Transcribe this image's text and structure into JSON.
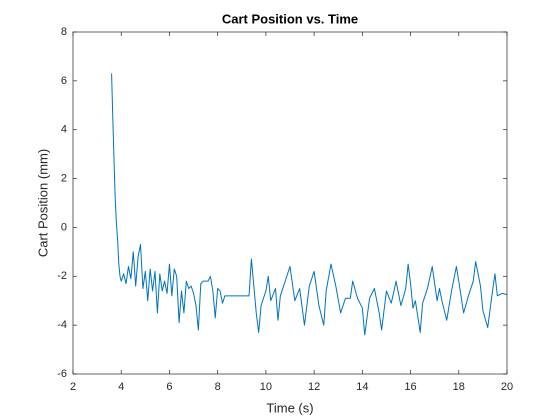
{
  "chart_data": {
    "type": "line",
    "title": "Cart Position vs. Time",
    "x_label": "Time (s)",
    "y_label": "Cart Position (mm)",
    "color": "#0072bd",
    "grid": false,
    "xlim": [
      2,
      20
    ],
    "xticks": [
      2,
      4,
      6,
      8,
      10,
      12,
      14,
      16,
      18,
      20
    ],
    "ylim": [
      -6,
      8
    ],
    "yticks": [
      -6,
      -4,
      -2,
      0,
      2,
      4,
      6,
      8
    ],
    "x": [
      3.6,
      3.65,
      3.7,
      3.75,
      3.8,
      3.85,
      3.9,
      3.95,
      4.0,
      4.1,
      4.2,
      4.3,
      4.4,
      4.5,
      4.6,
      4.7,
      4.8,
      4.9,
      5.0,
      5.1,
      5.2,
      5.3,
      5.4,
      5.5,
      5.6,
      5.7,
      5.8,
      5.9,
      6.0,
      6.1,
      6.2,
      6.3,
      6.4,
      6.5,
      6.6,
      6.7,
      6.8,
      6.9,
      7.0,
      7.1,
      7.2,
      7.3,
      7.4,
      7.6,
      7.7,
      7.8,
      7.9,
      8.0,
      8.1,
      8.2,
      8.3,
      9.0,
      9.3,
      9.4,
      9.5,
      9.6,
      9.7,
      9.8,
      9.9,
      10.0,
      10.1,
      10.2,
      10.4,
      10.5,
      10.6,
      10.8,
      11.0,
      11.2,
      11.4,
      11.6,
      11.8,
      12.0,
      12.1,
      12.2,
      12.4,
      12.5,
      12.7,
      12.9,
      13.1,
      13.3,
      13.5,
      13.6,
      13.8,
      14.0,
      14.1,
      14.3,
      14.5,
      14.7,
      14.8,
      15.0,
      15.2,
      15.4,
      15.6,
      15.8,
      15.9,
      16.0,
      16.1,
      16.2,
      16.4,
      16.5,
      16.7,
      16.9,
      17.1,
      17.2,
      17.3,
      17.5,
      17.7,
      17.9,
      18.0,
      18.2,
      18.4,
      18.6,
      18.7,
      18.9,
      19.0,
      19.2,
      19.4,
      19.5,
      19.6,
      19.8,
      20.0
    ],
    "values": [
      6.3,
      4.5,
      2.8,
      1.2,
      0.2,
      -0.5,
      -1.5,
      -2.0,
      -2.2,
      -1.9,
      -2.3,
      -1.6,
      -2.1,
      -1.0,
      -2.4,
      -1.2,
      -0.7,
      -2.5,
      -1.8,
      -3.0,
      -1.7,
      -2.6,
      -1.8,
      -3.5,
      -1.9,
      -2.6,
      -2.2,
      -2.7,
      -1.5,
      -2.8,
      -1.7,
      -2.0,
      -3.9,
      -2.6,
      -3.5,
      -2.2,
      -2.5,
      -2.4,
      -2.7,
      -3.2,
      -4.2,
      -2.3,
      -2.2,
      -2.2,
      -2.0,
      -2.6,
      -3.7,
      -2.5,
      -2.6,
      -3.1,
      -2.8,
      -2.8,
      -2.8,
      -1.3,
      -2.4,
      -3.5,
      -4.3,
      -3.2,
      -2.9,
      -2.6,
      -2.0,
      -3.0,
      -2.5,
      -3.8,
      -2.8,
      -2.2,
      -1.6,
      -3.0,
      -2.5,
      -4.0,
      -2.4,
      -1.8,
      -2.5,
      -3.2,
      -4.0,
      -2.6,
      -1.5,
      -2.4,
      -3.5,
      -2.9,
      -2.9,
      -2.2,
      -2.9,
      -3.3,
      -4.4,
      -2.9,
      -2.5,
      -3.5,
      -4.2,
      -2.6,
      -3.1,
      -2.2,
      -3.2,
      -2.5,
      -1.5,
      -2.3,
      -3.3,
      -3.0,
      -4.3,
      -3.1,
      -2.5,
      -1.6,
      -3.0,
      -2.5,
      -3.0,
      -3.8,
      -2.6,
      -1.6,
      -2.2,
      -3.5,
      -2.8,
      -2.2,
      -1.4,
      -2.4,
      -3.4,
      -4.1,
      -2.6,
      -1.9,
      -2.8,
      -2.7,
      -2.75
    ]
  }
}
